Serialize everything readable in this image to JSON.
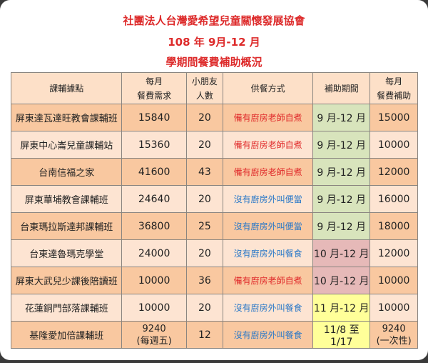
{
  "title": {
    "line1": "社團法人台灣愛希望兒童關懷發展協會",
    "line2": "108 年 9月-12 月",
    "line3": "學期間餐費補助概況"
  },
  "colors": {
    "title": "#dd2a2a",
    "self_cook": "#e02a2a",
    "order_out": "#2a78c8",
    "period_sep_dec": "#d8e4bc",
    "period_oct_dec": "#e6b9b8",
    "period_nov": "#ffff99"
  },
  "table": {
    "headers": [
      "課輔據點",
      "每月\n餐費需求",
      "小朋友\n人數",
      "供餐方式",
      "補助期間",
      "每月\n餐費補助"
    ],
    "header_lines": [
      [
        "課輔據點"
      ],
      [
        "每月",
        "餐費需求"
      ],
      [
        "小朋友",
        "人數"
      ],
      [
        "供餐方式"
      ],
      [
        "補助期間"
      ],
      [
        "每月",
        "餐費補助"
      ]
    ],
    "rows": [
      {
        "site": "屏東達瓦達旺教會課輔班",
        "need": "15840",
        "need_note": "",
        "kids": "20",
        "meal": "備有廚房老師自煮",
        "meal_type": "red",
        "period": "9 月-12 月",
        "period_color": "green",
        "subsidy": "15000",
        "subsidy_note": ""
      },
      {
        "site": "屏東中心崙兒童課輔站",
        "need": "15360",
        "need_note": "",
        "kids": "20",
        "meal": "備有廚房老師自煮",
        "meal_type": "red",
        "period": "9 月-12 月",
        "period_color": "green",
        "subsidy": "10000",
        "subsidy_note": ""
      },
      {
        "site": "台南信福之家",
        "need": "41600",
        "need_note": "",
        "kids": "43",
        "meal": "備有廚房老師自煮",
        "meal_type": "red",
        "period": "9 月-12 月",
        "period_color": "green",
        "subsidy": "12000",
        "subsidy_note": ""
      },
      {
        "site": "屏東華埔教會課輔班",
        "need": "24640",
        "need_note": "",
        "kids": "20",
        "meal": "沒有廚房外叫便當",
        "meal_type": "blue",
        "period": "9 月-12 月",
        "period_color": "green",
        "subsidy": "16000",
        "subsidy_note": ""
      },
      {
        "site": "台東瑪拉斯達邦課輔班",
        "need": "36800",
        "need_note": "",
        "kids": "25",
        "meal": "沒有廚房外叫便當",
        "meal_type": "blue",
        "period": "9 月-12 月",
        "period_color": "green",
        "subsidy": "18000",
        "subsidy_note": ""
      },
      {
        "site": "台東達魯瑪克學堂",
        "need": "24000",
        "need_note": "",
        "kids": "20",
        "meal": "沒有廚房外叫餐食",
        "meal_type": "blue",
        "period": "10 月-12 月",
        "period_color": "pink",
        "subsidy": "12000",
        "subsidy_note": ""
      },
      {
        "site": "屏東大武兒少課後陪讀班",
        "need": "10000",
        "need_note": "",
        "kids": "36",
        "meal": "備有廚房老師自煮",
        "meal_type": "red",
        "period": "10 月-12 月",
        "period_color": "pink",
        "subsidy": "10000",
        "subsidy_note": ""
      },
      {
        "site": "花蓮銅門部落課輔班",
        "need": "10000",
        "need_note": "",
        "kids": "20",
        "meal": "沒有廚房外叫餐食",
        "meal_type": "blue",
        "period": "11 月-12 月",
        "period_color": "yellow",
        "subsidy": "10000",
        "subsidy_note": ""
      },
      {
        "site": "基隆愛加倍課輔班",
        "need": "9240",
        "need_note": "(每週五)",
        "kids": "12",
        "meal": "沒有廚房外叫餐食",
        "meal_type": "blue",
        "period": "11/8 至 1/17",
        "period_color": "yellow",
        "subsidy": "9240",
        "subsidy_note": "(一次性)"
      }
    ]
  }
}
